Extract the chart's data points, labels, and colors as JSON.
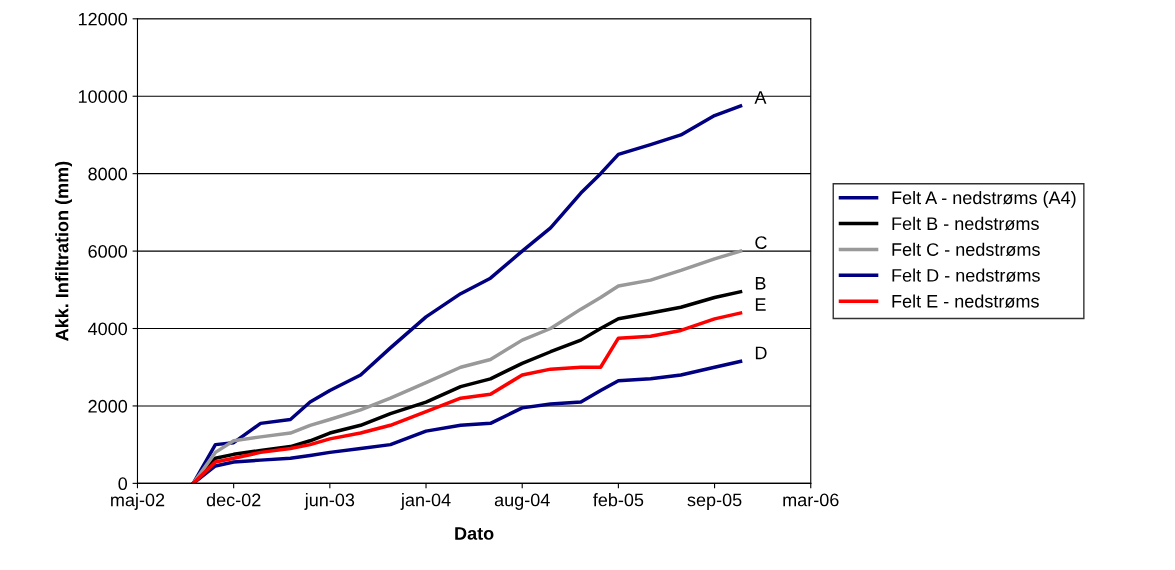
{
  "chart_data": {
    "type": "line",
    "xlabel": "Dato",
    "ylabel": "Akk. Infiltration (mm)",
    "x": [
      "2002-09-18",
      "2002-11-03",
      "2002-12-11",
      "2003-02-05",
      "2003-04-08",
      "2003-05-19",
      "2003-06-29",
      "2003-09-01",
      "2003-11-02",
      "2004-01-15",
      "2004-03-27",
      "2004-05-28",
      "2004-08-02",
      "2004-09-30",
      "2004-12-02",
      "2005-01-12",
      "2005-02-18",
      "2005-04-26",
      "2005-06-28",
      "2005-09-06",
      "2005-10-30"
    ],
    "series": [
      {
        "name": "Felt A - nedstrøms (A4)",
        "color": "#000080",
        "values": [
          0,
          1000,
          1050,
          1550,
          1650,
          2100,
          2400,
          2800,
          3500,
          4300,
          4900,
          5300,
          6000,
          6600,
          7500,
          8000,
          8500,
          8750,
          9000,
          9500,
          9750
        ]
      },
      {
        "name": "Felt B - nedstrøms",
        "color": "#000000",
        "values": [
          0,
          650,
          750,
          850,
          950,
          1100,
          1300,
          1500,
          1800,
          2100,
          2500,
          2700,
          3100,
          3400,
          3700,
          4000,
          4250,
          4400,
          4550,
          4800,
          4950
        ]
      },
      {
        "name": "Felt C - nedstrøms",
        "color": "#999999",
        "values": [
          0,
          800,
          1100,
          1200,
          1300,
          1500,
          1650,
          1900,
          2200,
          2600,
          3000,
          3200,
          3700,
          4000,
          4500,
          4800,
          5100,
          5250,
          5500,
          5800,
          6000
        ]
      },
      {
        "name": "Felt D - nedstrøms",
        "color": "#000080",
        "values": [
          0,
          450,
          550,
          600,
          650,
          720,
          800,
          900,
          1000,
          1350,
          1500,
          1550,
          1950,
          2050,
          2100,
          2400,
          2650,
          2700,
          2800,
          3000,
          3150
        ]
      },
      {
        "name": "Felt E - nedstrøms",
        "color": "#ff0000",
        "values": [
          0,
          550,
          650,
          800,
          900,
          1000,
          1150,
          1300,
          1500,
          1850,
          2200,
          2300,
          2800,
          2950,
          3000,
          3000,
          3750,
          3800,
          3950,
          4250,
          4400
        ]
      }
    ],
    "xlim": [
      "2002-05-25",
      "2006-03-25"
    ],
    "xticks": [
      {
        "value": "2002-05-25",
        "label": "maj-02"
      },
      {
        "value": "2002-12-11",
        "label": "dec-02"
      },
      {
        "value": "2003-06-29",
        "label": "jun-03"
      },
      {
        "value": "2004-01-15",
        "label": "jan-04"
      },
      {
        "value": "2004-08-02",
        "label": "aug-04"
      },
      {
        "value": "2005-02-18",
        "label": "feb-05"
      },
      {
        "value": "2005-09-06",
        "label": "sep-05"
      },
      {
        "value": "2006-03-25",
        "label": "mar-06"
      }
    ],
    "ylim": [
      0,
      12000
    ],
    "yticks": [
      0,
      2000,
      4000,
      6000,
      8000,
      10000,
      12000
    ],
    "grid": "y",
    "legend": "right",
    "marker": "none",
    "line_style": "solid",
    "annotations": [
      {
        "text": "A",
        "x": "2005-10-30",
        "y": 9750
      },
      {
        "text": "C",
        "x": "2005-10-30",
        "y": 6000
      },
      {
        "text": "B",
        "x": "2005-10-30",
        "y": 4950
      },
      {
        "text": "E",
        "x": "2005-10-30",
        "y": 4400
      },
      {
        "text": "D",
        "x": "2005-10-30",
        "y": 3150
      }
    ]
  }
}
